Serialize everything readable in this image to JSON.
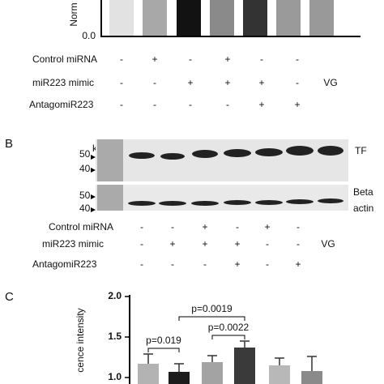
{
  "panel_a": {
    "y_axis_label": "Norm",
    "y_tick": "0.0",
    "conditions": [
      {
        "label": "Control miRNA",
        "marks": [
          "-",
          "+",
          "-",
          "+",
          "-",
          "-"
        ]
      },
      {
        "label": "miR223 mimic",
        "marks": [
          "-",
          "-",
          "+",
          "+",
          "+",
          "-",
          "VG"
        ]
      },
      {
        "label": "AntagomiR223",
        "marks": [
          "-",
          "-",
          "-",
          "-",
          "+",
          "+"
        ]
      }
    ]
  },
  "panel_b": {
    "letter": "B",
    "unit": "kDa",
    "top_markers": [
      "50",
      "40"
    ],
    "bottom_markers": [
      "50",
      "40"
    ],
    "top_band": "TF",
    "bottom_band": [
      "Beta",
      "actin"
    ],
    "conditions": [
      {
        "label": "Control miRNA",
        "marks": [
          "-",
          "-",
          "+",
          "-",
          "+",
          "-"
        ]
      },
      {
        "label": "miR223 mimic",
        "marks": [
          "-",
          "+",
          "+",
          "+",
          "-",
          "-",
          "VG"
        ]
      },
      {
        "label": "AntagomiR223",
        "marks": [
          "-",
          "-",
          "-",
          "+",
          "-",
          "+"
        ]
      }
    ]
  },
  "chart_data": {
    "type": "bar",
    "panel_letter": "C",
    "ylabel": "cence intensity",
    "categories": [
      null,
      null,
      null,
      null,
      null,
      null
    ],
    "ylim": [
      0.92,
      2.0
    ],
    "yticks": [
      {
        "value": 1.0,
        "label": "1.0"
      },
      {
        "value": 1.5,
        "label": "1.5"
      },
      {
        "value": 2.0,
        "label": "2.0"
      }
    ],
    "values": [
      1.17,
      1.07,
      1.19,
      1.37,
      1.15,
      1.08
    ],
    "errors": [
      0.12,
      0.1,
      0.08,
      0.08,
      0.09,
      0.18
    ],
    "colors": [
      "#b3b3b3",
      "#1c1c1c",
      "#a3a3a3",
      "#3a3a3a",
      "#b8b8b8",
      "#8a8a8a"
    ],
    "annotations": [
      "p=0.019",
      "p=0.0019",
      "p=0.0022"
    ]
  }
}
